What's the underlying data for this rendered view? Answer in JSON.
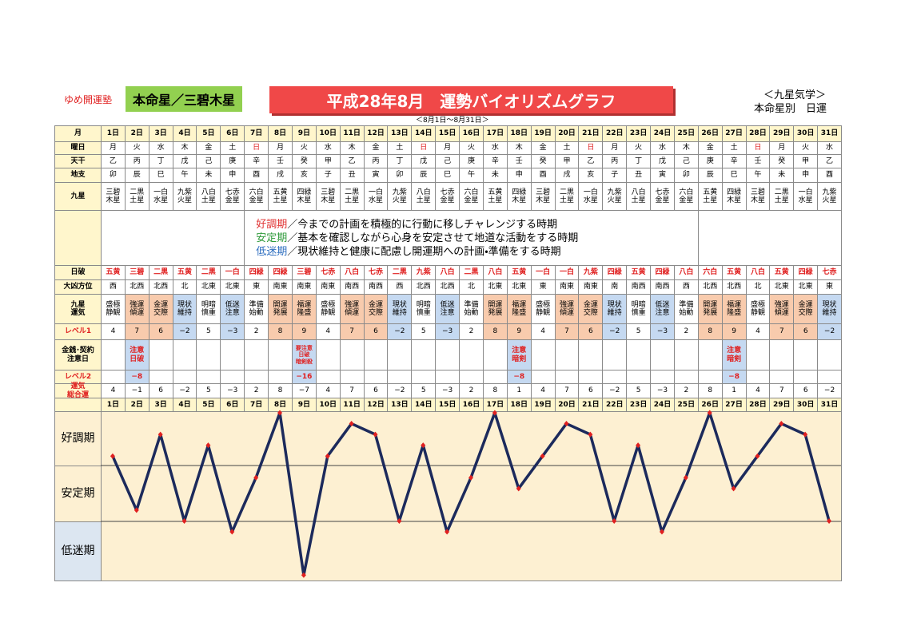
{
  "header": {
    "school": "ゆめ開運塾",
    "honmei": "本命星／三碧木星",
    "title": "平成28年8月　運勢バイオリズムグラフ",
    "range": "＜8月1日～8月31日＞",
    "right1": "＜九星気学＞",
    "right2": "本命星別　日運"
  },
  "table": {
    "row_labels": [
      "月",
      "曜日",
      "天干",
      "地支",
      "九星",
      "日破",
      "大凶方位",
      "九星\n運気",
      "レベル1",
      "金銭･契約\n注意日",
      "レベル2",
      "運気\n総合運"
    ],
    "days": [
      "1日",
      "2日",
      "3日",
      "4日",
      "5日",
      "6日",
      "7日",
      "8日",
      "9日",
      "10日",
      "11日",
      "12日",
      "13日",
      "14日",
      "15日",
      "16日",
      "17日",
      "18日",
      "19日",
      "20日",
      "21日",
      "22日",
      "23日",
      "24日",
      "25日",
      "26日",
      "27日",
      "28日",
      "29日",
      "30日",
      "31日"
    ],
    "weekdays": [
      "月",
      "火",
      "水",
      "木",
      "金",
      "土",
      "日",
      "月",
      "火",
      "水",
      "木",
      "金",
      "土",
      "日",
      "月",
      "火",
      "水",
      "木",
      "金",
      "土",
      "日",
      "月",
      "火",
      "水",
      "木",
      "金",
      "土",
      "日",
      "月",
      "火",
      "水"
    ],
    "kan": [
      "乙",
      "丙",
      "丁",
      "戊",
      "己",
      "庚",
      "辛",
      "壬",
      "癸",
      "甲",
      "乙",
      "丙",
      "丁",
      "戊",
      "己",
      "庚",
      "辛",
      "壬",
      "癸",
      "甲",
      "乙",
      "丙",
      "丁",
      "戊",
      "己",
      "庚",
      "辛",
      "壬",
      "癸",
      "甲",
      "乙"
    ],
    "shi": [
      "卯",
      "辰",
      "巳",
      "午",
      "未",
      "申",
      "酉",
      "戌",
      "亥",
      "子",
      "丑",
      "寅",
      "卯",
      "辰",
      "巳",
      "午",
      "未",
      "申",
      "酉",
      "戌",
      "亥",
      "子",
      "丑",
      "寅",
      "卯",
      "辰",
      "巳",
      "午",
      "未",
      "申",
      "酉"
    ],
    "kyusei": [
      "三碧\n木星",
      "二黒\n土星",
      "一白\n水星",
      "九紫\n火星",
      "八白\n土星",
      "七赤\n金星",
      "六白\n金星",
      "五黄\n土星",
      "四緑\n木星",
      "三碧\n木星",
      "二黒\n土星",
      "一白\n水星",
      "九紫\n火星",
      "八白\n土星",
      "七赤\n金星",
      "六白\n金星",
      "五黄\n土星",
      "四緑\n木星",
      "三碧\n木星",
      "二黒\n土星",
      "一白\n水星",
      "九紫\n火星",
      "八白\n土星",
      "七赤\n金星",
      "六白\n金星",
      "五黄\n土星",
      "四緑\n木星",
      "三碧\n木星",
      "二黒\n土星",
      "一白\n水星",
      "九紫\n火星"
    ],
    "nippa": [
      "五黄",
      "三碧",
      "二黒",
      "五黄",
      "二黒",
      "一白",
      "四緑",
      "四緑",
      "三碧",
      "七赤",
      "八白",
      "七赤",
      "二黒",
      "九紫",
      "八白",
      "二黒",
      "八白",
      "五黄",
      "一白",
      "一白",
      "九紫",
      "四緑",
      "五黄",
      "四緑",
      "八白",
      "六白",
      "五黄",
      "八白",
      "五黄",
      "四緑",
      "七赤"
    ],
    "kyo": [
      "西",
      "北西",
      "北西",
      "北",
      "北東",
      "北東",
      "東",
      "南東",
      "南東",
      "南東",
      "南西",
      "南西",
      "西",
      "北西",
      "北西",
      "北",
      "北東",
      "北東",
      "東",
      "南東",
      "南東",
      "南",
      "南西",
      "南西",
      "西",
      "北西",
      "北西",
      "北",
      "北東",
      "北東",
      "東"
    ],
    "unki": [
      "盛極\n静観",
      "強運\n傾運",
      "金運\n交際",
      "現状\n維持",
      "明暗\n慎重",
      "低迷\n注意",
      "準備\n始動",
      "開運\n発展",
      "福運\n隆盛",
      "盛極\n静観",
      "強運\n傾運",
      "金運\n交際",
      "現状\n維持",
      "明暗\n慎重",
      "低迷\n注意",
      "準備\n始動",
      "開運\n発展",
      "福運\n隆盛",
      "盛極\n静観",
      "強運\n傾運",
      "金運\n交際",
      "現状\n維持",
      "明暗\n慎重",
      "低迷\n注意",
      "準備\n始動",
      "開運\n発展",
      "福運\n隆盛",
      "盛極\n静観",
      "強運\n傾運",
      "金運\n交際",
      "現状\n維持"
    ],
    "level1": {
      "values": [
        4,
        7,
        6,
        -2,
        5,
        -3,
        2,
        8,
        9,
        4,
        7,
        6,
        -2,
        5,
        -3,
        2,
        8,
        9,
        4,
        7,
        6,
        -2,
        5,
        -3,
        2,
        8,
        9,
        4,
        7,
        6,
        -2
      ],
      "labels": [
        "4",
        "7",
        "6",
        "−2",
        "5",
        "−3",
        "2",
        "8",
        "9",
        "4",
        "7",
        "6",
        "−2",
        "5",
        "−3",
        "2",
        "8",
        "9",
        "4",
        "7",
        "6",
        "−2",
        "5",
        "−3",
        "2",
        "8",
        "9",
        "4",
        "7",
        "6",
        "−2"
      ]
    },
    "caution": [
      null,
      "注意\n日破",
      null,
      null,
      null,
      null,
      null,
      null,
      "要注意\n日破\n暗剣殺",
      null,
      null,
      null,
      null,
      null,
      null,
      null,
      null,
      "注意\n暗剣",
      null,
      null,
      null,
      null,
      null,
      null,
      null,
      null,
      "注意\n暗剣",
      null,
      null,
      null,
      null
    ],
    "level2": [
      null,
      "−8",
      null,
      null,
      null,
      null,
      null,
      null,
      "−16",
      null,
      null,
      null,
      null,
      null,
      null,
      null,
      null,
      "−8",
      null,
      null,
      null,
      null,
      null,
      null,
      null,
      null,
      "−8",
      null,
      null,
      null,
      null
    ],
    "total": {
      "values": [
        4,
        -1,
        6,
        -2,
        5,
        -3,
        2,
        8,
        -7,
        4,
        7,
        6,
        -2,
        5,
        -3,
        2,
        8,
        1,
        4,
        7,
        6,
        -2,
        5,
        -3,
        2,
        8,
        1,
        4,
        7,
        6,
        -2
      ],
      "labels": [
        "4",
        "−1",
        "6",
        "−2",
        "5",
        "−3",
        "2",
        "8",
        "−7",
        "4",
        "7",
        "6",
        "−2",
        "5",
        "−3",
        "2",
        "8",
        "1",
        "4",
        "7",
        "6",
        "−2",
        "5",
        "−3",
        "2",
        "8",
        "1",
        "4",
        "7",
        "6",
        "−2"
      ]
    }
  },
  "legend": [
    {
      "term": "好調期",
      "text": "／今までの計画を積極的に行動に移しチャレンジする時期",
      "color": "#e03030"
    },
    {
      "term": "安定期",
      "text": "／基本を確認しながら心身を安定させて地道な活動をする時期",
      "color": "#2e9a3a"
    },
    {
      "term": "低迷期",
      "text": "／現状維持と健康に配慮し開運期への計画・準備をする時期",
      "color": "#2f6fc0"
    }
  ],
  "graph": {
    "bands": [
      "好調期",
      "安定期",
      "低迷期"
    ],
    "ylim": [
      -7.5,
      8
    ],
    "line_color": "#1c2a5c",
    "point_color": "#e02020"
  }
}
